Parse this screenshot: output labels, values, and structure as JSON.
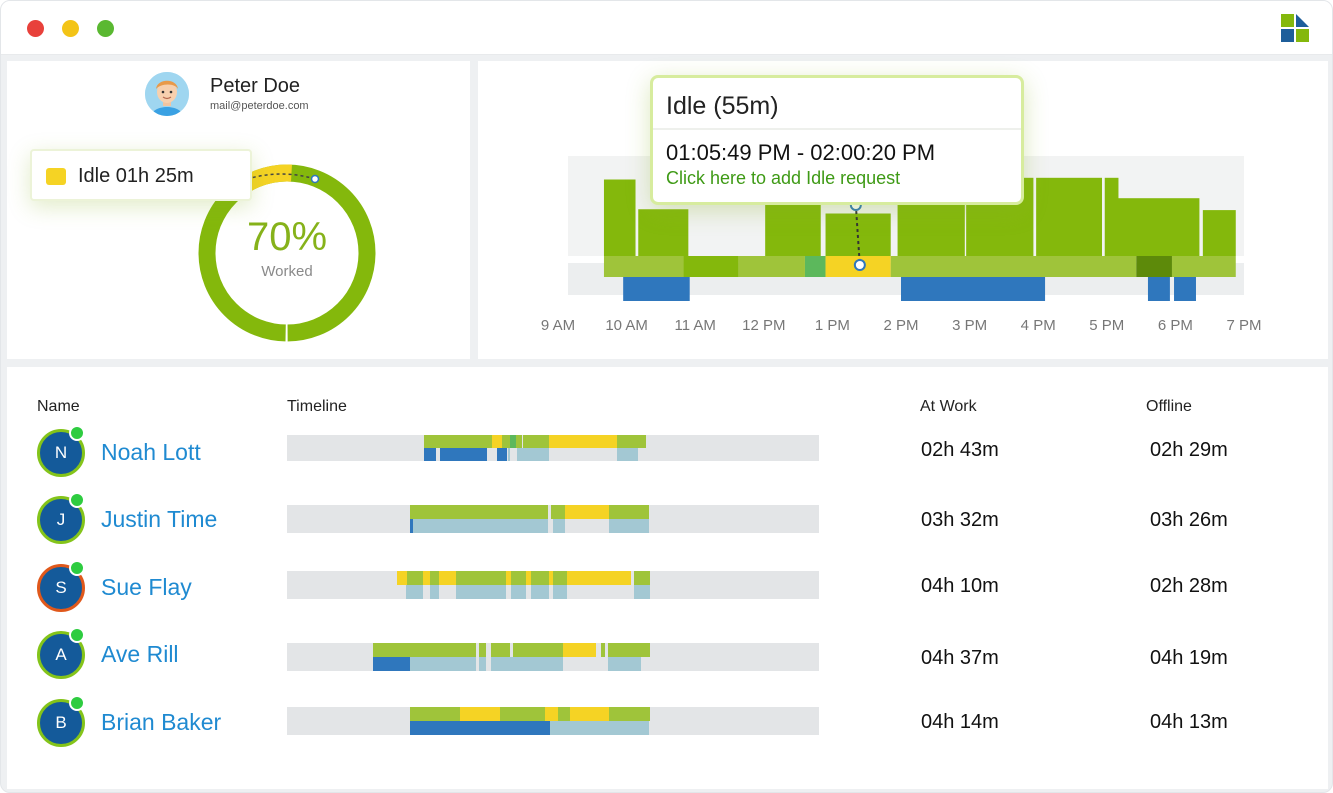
{
  "window": {
    "controls": [
      {
        "name": "close",
        "color": "#e8413b"
      },
      {
        "name": "minimize",
        "color": "#f3c417"
      },
      {
        "name": "maximize",
        "color": "#5ab831"
      }
    ],
    "logo_icon": "brand-logo-icon"
  },
  "colors": {
    "worked": "#84b80c",
    "worked_light": "#9fc43a",
    "idle": "#f5d324",
    "offline_blue": "#2f77bd",
    "break_green": "#5cb85c",
    "meeting_dark": "#5d8a0a",
    "bg_gray": "#eceeef",
    "link_blue": "#1f8ad1"
  },
  "profile": {
    "name": "Peter Doe",
    "email": "mail@peterdoe.com",
    "worked_percent": 70,
    "worked_percent_label": "70%",
    "worked_label": "Worked",
    "idle_card": "Idle 01h 25m",
    "idle_fraction": 0.12
  },
  "tooltip": {
    "title": "Idle (55m)",
    "time_range": "01:05:49 PM - 02:00:20 PM",
    "link": "Click here to add Idle request"
  },
  "chart_data": {
    "type": "bar",
    "x_ticks": [
      "9 AM",
      "10 AM",
      "11 AM",
      "12 PM",
      "1 PM",
      "2 PM",
      "3 PM",
      "4 PM",
      "5 PM",
      "6 PM",
      "7 PM"
    ],
    "x_range_hours": [
      9,
      19
    ],
    "activity_bars": [
      {
        "start": 9.67,
        "end": 10.13,
        "value": 0.9
      },
      {
        "start": 10.17,
        "end": 10.9,
        "value": 0.55
      },
      {
        "start": 12.02,
        "end": 12.83,
        "value": 0.75
      },
      {
        "start": 12.9,
        "end": 13.85,
        "value": 0.5
      },
      {
        "start": 13.95,
        "end": 14.93,
        "value": 0.72
      },
      {
        "start": 14.95,
        "end": 15.93,
        "value": 0.92
      },
      {
        "start": 15.97,
        "end": 16.93,
        "value": 0.92
      },
      {
        "start": 16.97,
        "end": 17.17,
        "value": 0.92
      },
      {
        "start": 17.15,
        "end": 18.35,
        "value": 0.68
      },
      {
        "start": 18.4,
        "end": 18.88,
        "value": 0.54
      }
    ],
    "status_band": [
      {
        "start": 9.67,
        "end": 10.83,
        "status": "worked_light"
      },
      {
        "start": 10.83,
        "end": 11.63,
        "status": "worked"
      },
      {
        "start": 11.63,
        "end": 12.6,
        "status": "worked_light"
      },
      {
        "start": 12.6,
        "end": 12.9,
        "status": "break_green"
      },
      {
        "start": 12.9,
        "end": 13.85,
        "status": "idle"
      },
      {
        "start": 13.85,
        "end": 17.43,
        "status": "worked_light"
      },
      {
        "start": 17.43,
        "end": 17.95,
        "status": "meeting_dark"
      },
      {
        "start": 17.95,
        "end": 18.88,
        "status": "worked_light"
      }
    ],
    "offline_band": [
      {
        "start": 9.95,
        "end": 10.92
      },
      {
        "start": 14.0,
        "end": 16.1
      },
      {
        "start": 17.6,
        "end": 17.92
      },
      {
        "start": 17.98,
        "end": 18.3
      }
    ]
  },
  "team": {
    "headers": {
      "name": "Name",
      "timeline": "Timeline",
      "at_work": "At Work",
      "offline": "Offline"
    },
    "rows": [
      {
        "initial": "N",
        "name": "Noah Lott",
        "at_work": "02h 43m",
        "offline": "02h 29m",
        "avatar_ring": "#84c41a",
        "top": [
          [
            0.257,
            0.386,
            "worked_light"
          ],
          [
            0.386,
            0.405,
            "idle"
          ],
          [
            0.405,
            0.42,
            "worked_light"
          ],
          [
            0.42,
            0.43,
            "break_green"
          ],
          [
            0.43,
            0.441,
            "worked_light"
          ],
          [
            0.444,
            0.493,
            "worked_light"
          ],
          [
            0.493,
            0.62,
            "idle"
          ],
          [
            0.62,
            0.675,
            "worked_light"
          ]
        ],
        "bottom": [
          [
            0.257,
            0.281,
            "offline_blue"
          ],
          [
            0.288,
            0.376,
            "offline_blue"
          ],
          [
            0.395,
            0.413,
            "offline_blue"
          ],
          [
            0.415,
            0.42,
            "light_blue"
          ],
          [
            0.433,
            0.441,
            "light_blue"
          ],
          [
            0.441,
            0.493,
            "light_blue"
          ],
          [
            0.62,
            0.66,
            "light_blue"
          ]
        ]
      },
      {
        "initial": "J",
        "name": "Justin Time",
        "at_work": "03h 32m",
        "offline": "03h 26m",
        "avatar_ring": "#84c41a",
        "top": [
          [
            0.231,
            0.49,
            "worked_light"
          ],
          [
            0.497,
            0.523,
            "worked_light"
          ],
          [
            0.523,
            0.605,
            "idle"
          ],
          [
            0.605,
            0.68,
            "worked_light"
          ]
        ],
        "bottom": [
          [
            0.231,
            0.237,
            "offline_blue"
          ],
          [
            0.237,
            0.49,
            "light_blue"
          ],
          [
            0.5,
            0.523,
            "light_blue"
          ],
          [
            0.605,
            0.68,
            "light_blue"
          ]
        ]
      },
      {
        "initial": "S",
        "name": "Sue Flay",
        "at_work": "04h 10m",
        "offline": "02h 28m",
        "avatar_ring": "#e0581b",
        "top": [
          [
            0.207,
            0.226,
            "idle"
          ],
          [
            0.226,
            0.256,
            "worked_light"
          ],
          [
            0.256,
            0.268,
            "idle"
          ],
          [
            0.268,
            0.286,
            "worked_light"
          ],
          [
            0.286,
            0.318,
            "idle"
          ],
          [
            0.318,
            0.411,
            "worked_light"
          ],
          [
            0.411,
            0.421,
            "idle"
          ],
          [
            0.421,
            0.45,
            "worked_light"
          ],
          [
            0.45,
            0.458,
            "idle"
          ],
          [
            0.458,
            0.492,
            "worked_light"
          ],
          [
            0.492,
            0.5,
            "idle"
          ],
          [
            0.5,
            0.526,
            "worked_light"
          ],
          [
            0.526,
            0.647,
            "idle"
          ],
          [
            0.652,
            0.682,
            "worked_light"
          ]
        ],
        "bottom": [
          [
            0.224,
            0.256,
            "light_blue"
          ],
          [
            0.268,
            0.286,
            "light_blue"
          ],
          [
            0.318,
            0.411,
            "light_blue"
          ],
          [
            0.421,
            0.45,
            "light_blue"
          ],
          [
            0.458,
            0.492,
            "light_blue"
          ],
          [
            0.5,
            0.526,
            "light_blue"
          ],
          [
            0.652,
            0.682,
            "light_blue"
          ]
        ]
      },
      {
        "initial": "A",
        "name": "Ave Rill",
        "at_work": "04h 37m",
        "offline": "04h 19m",
        "avatar_ring": "#84c41a",
        "top": [
          [
            0.162,
            0.355,
            "worked_light"
          ],
          [
            0.36,
            0.375,
            "worked_light"
          ],
          [
            0.383,
            0.42,
            "worked_light"
          ],
          [
            0.425,
            0.518,
            "worked_light"
          ],
          [
            0.518,
            0.581,
            "idle"
          ],
          [
            0.59,
            0.597,
            "worked_light"
          ],
          [
            0.603,
            0.682,
            "worked_light"
          ]
        ],
        "bottom": [
          [
            0.162,
            0.231,
            "offline_blue"
          ],
          [
            0.231,
            0.355,
            "light_blue"
          ],
          [
            0.36,
            0.375,
            "light_blue"
          ],
          [
            0.383,
            0.518,
            "light_blue"
          ],
          [
            0.603,
            0.665,
            "light_blue"
          ]
        ]
      },
      {
        "initial": "B",
        "name": "Brian Baker",
        "at_work": "04h 14m",
        "offline": "04h 13m",
        "avatar_ring": "#84c41a",
        "top": [
          [
            0.231,
            0.325,
            "worked_light"
          ],
          [
            0.325,
            0.4,
            "idle"
          ],
          [
            0.4,
            0.485,
            "worked_light"
          ],
          [
            0.485,
            0.51,
            "idle"
          ],
          [
            0.51,
            0.532,
            "worked_light"
          ],
          [
            0.532,
            0.606,
            "idle"
          ],
          [
            0.606,
            0.682,
            "worked_light"
          ]
        ],
        "bottom": [
          [
            0.231,
            0.494,
            "offline_blue"
          ],
          [
            0.494,
            0.532,
            "light_blue"
          ],
          [
            0.532,
            0.606,
            "light_blue"
          ],
          [
            0.606,
            0.68,
            "light_blue"
          ]
        ]
      }
    ]
  }
}
